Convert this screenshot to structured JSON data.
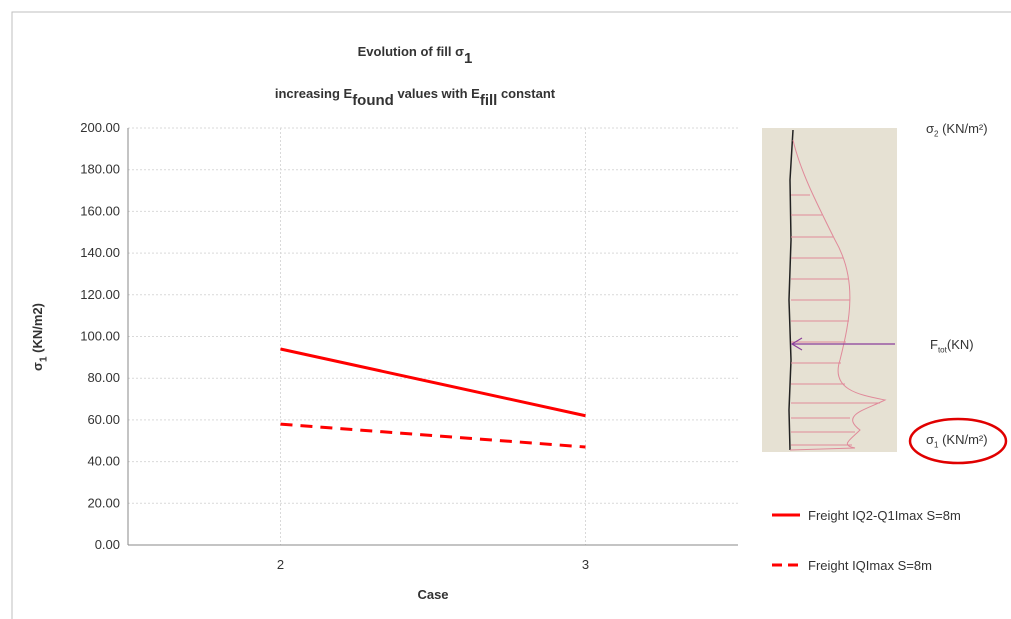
{
  "chart_data": {
    "type": "line",
    "title": [
      [
        {
          "text": "Evolution of fill σ"
        },
        {
          "sub": "1"
        }
      ],
      [
        {
          "text": "increasing E"
        },
        {
          "sub": "found"
        },
        {
          "text": " values with E"
        },
        {
          "sub": "fill"
        },
        {
          "text": " constant"
        }
      ]
    ],
    "y_label": [
      {
        "text": "σ"
      },
      {
        "sub": "1"
      },
      {
        "text": " (KN/m2)"
      }
    ],
    "x_label": "Case",
    "categories": [
      "2",
      "3"
    ],
    "series": [
      {
        "name": "Freight IQ2-Q1Imax S=8m",
        "color": "#ff0000",
        "dash": false,
        "values": [
          94,
          62
        ]
      },
      {
        "name": "Freight IQImax S=8m",
        "color": "#ff0000",
        "dash": true,
        "values": [
          58,
          47
        ]
      }
    ],
    "ylim": [
      0,
      200
    ],
    "yticks": [
      {
        "value": 0,
        "label": "0.00"
      },
      {
        "value": 20,
        "label": "20.00"
      },
      {
        "value": 40,
        "label": "40.00"
      },
      {
        "value": 60,
        "label": "60.00"
      },
      {
        "value": 80,
        "label": "80.00"
      },
      {
        "value": 100,
        "label": "100.00"
      },
      {
        "value": 120,
        "label": "120.00"
      },
      {
        "value": 140,
        "label": "140.00"
      },
      {
        "value": 160,
        "label": "160.00"
      },
      {
        "value": 180,
        "label": "180.00"
      },
      {
        "value": 200,
        "label": "200.00"
      }
    ],
    "grid": true
  },
  "inset": {
    "top_label": [
      {
        "text": "σ"
      },
      {
        "sub": "2"
      },
      {
        "text": " (KN/m²)"
      }
    ],
    "force_label": [
      {
        "text": "F"
      },
      {
        "sub": "tot"
      },
      {
        "text": "(KN)"
      }
    ],
    "bottom_label": [
      {
        "text": "σ"
      },
      {
        "sub": "1"
      },
      {
        "text": " (KN/m²)"
      }
    ]
  }
}
